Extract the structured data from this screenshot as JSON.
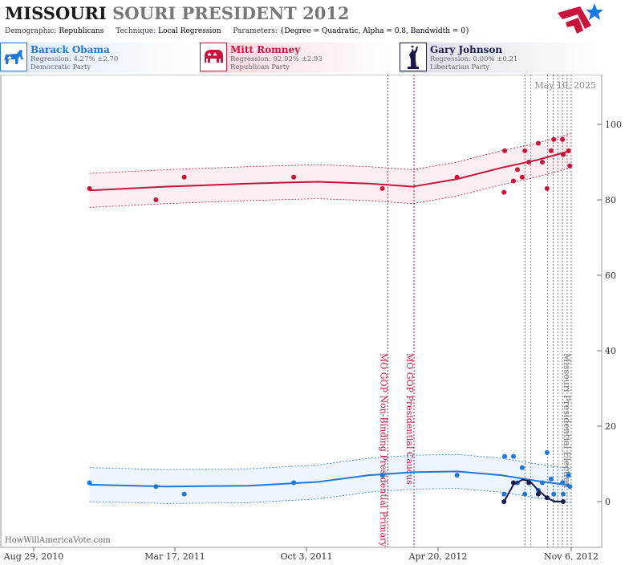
{
  "header": {
    "title_state": "MISSOURI",
    "title_rest": "SOURI PRESIDENT 2012",
    "demographic_label": "Demographic:",
    "demographic_value": "Republicans",
    "technique_label": "Technique:",
    "technique_value": "Local Regression",
    "parameters_label": "Parameters:",
    "parameters_value": "{Degree = Quadratic, Alpha = 0.8, Bandwidth = 0}"
  },
  "candidates": [
    {
      "name": "Barack Obama",
      "regression": "Regression: 4.27% ±2.70",
      "party": "Democratic Party",
      "color": "#1e78dc",
      "icon": "donkey-icon"
    },
    {
      "name": "Mitt Romney",
      "regression": "Regression: 92.92% ±2.93",
      "party": "Republican Party",
      "color": "#c8143c",
      "icon": "elephant-icon"
    },
    {
      "name": "Gary Johnson",
      "regression": "Regression: 0.00% ±0.21",
      "party": "Libertarian Party",
      "color": "#1a1a4a",
      "icon": "statue-of-liberty-icon"
    }
  ],
  "date_stamp": "May 10, 2025",
  "watermark": "HowWillAmericaVote.com",
  "chart_data": {
    "type": "scatter",
    "x_ticks": [
      "Aug 29, 2010",
      "Mar 17, 2011",
      "Oct 3, 2011",
      "Apr 20, 2012",
      "Nov 6, 2012"
    ],
    "x_range": [
      "2010-08-29",
      "2012-11-06"
    ],
    "y_ticks": [
      0,
      20,
      40,
      60,
      80,
      100
    ],
    "ylim": [
      -12,
      112
    ],
    "grid": false,
    "events": [
      {
        "label": "MO GOP Non-Binding Presidential Primary",
        "date": "2012-02-07",
        "color": "#c8143c"
      },
      {
        "label": "MO GOP Presidential Caucus",
        "date": "2012-03-17",
        "color": "#c8143c"
      },
      {
        "label": "Missouri Presidential Election",
        "date": "2012-11-06",
        "color": "#777777"
      }
    ],
    "series": [
      {
        "name": "Mitt Romney",
        "color": "#c8143c",
        "points": [
          [
            "2010-11-20",
            83
          ],
          [
            "2011-02-27",
            80
          ],
          [
            "2011-04-10",
            86
          ],
          [
            "2011-09-20",
            86
          ],
          [
            "2012-01-30",
            83
          ],
          [
            "2012-05-20",
            86
          ],
          [
            "2012-07-30",
            93
          ],
          [
            "2012-07-29",
            82
          ],
          [
            "2012-08-12",
            85
          ],
          [
            "2012-08-18",
            88
          ],
          [
            "2012-08-25",
            86
          ],
          [
            "2012-08-29",
            93
          ],
          [
            "2012-09-04",
            90
          ],
          [
            "2012-09-18",
            95
          ],
          [
            "2012-09-24",
            90
          ],
          [
            "2012-10-01",
            83
          ],
          [
            "2012-10-07",
            93
          ],
          [
            "2012-10-11",
            96
          ],
          [
            "2012-10-24",
            96
          ],
          [
            "2012-10-25",
            92
          ],
          [
            "2012-11-02",
            93
          ],
          [
            "2012-11-04",
            89
          ]
        ],
        "trend": [
          [
            "2010-11-20",
            82.5
          ],
          [
            "2011-03-15",
            83.5
          ],
          [
            "2011-07-15",
            84.3
          ],
          [
            "2011-10-25",
            84.8
          ],
          [
            "2012-01-10",
            84.3
          ],
          [
            "2012-03-15",
            83.5
          ],
          [
            "2012-05-20",
            85.5
          ],
          [
            "2012-07-25",
            88.5
          ],
          [
            "2012-09-15",
            90.5
          ],
          [
            "2012-11-05",
            93
          ]
        ],
        "band": 4.5
      },
      {
        "name": "Barack Obama",
        "color": "#1e78dc",
        "points": [
          [
            "2010-11-20",
            5
          ],
          [
            "2011-02-27",
            4
          ],
          [
            "2011-04-10",
            2
          ],
          [
            "2011-09-20",
            5
          ],
          [
            "2012-01-30",
            7
          ],
          [
            "2012-05-20",
            7
          ],
          [
            "2012-07-30",
            12
          ],
          [
            "2012-07-29",
            2
          ],
          [
            "2012-08-12",
            12
          ],
          [
            "2012-08-18",
            5
          ],
          [
            "2012-08-25",
            9
          ],
          [
            "2012-08-29",
            2
          ],
          [
            "2012-09-04",
            5
          ],
          [
            "2012-09-18",
            3
          ],
          [
            "2012-09-24",
            5
          ],
          [
            "2012-10-01",
            13
          ],
          [
            "2012-10-07",
            6
          ],
          [
            "2012-10-11",
            2
          ],
          [
            "2012-10-24",
            5
          ],
          [
            "2012-10-25",
            2
          ],
          [
            "2012-11-02",
            7
          ],
          [
            "2012-11-04",
            4
          ]
        ],
        "trend": [
          [
            "2010-11-20",
            4.5
          ],
          [
            "2011-03-15",
            4
          ],
          [
            "2011-07-15",
            4.2
          ],
          [
            "2011-10-25",
            5.2
          ],
          [
            "2012-01-10",
            7
          ],
          [
            "2012-03-15",
            7.8
          ],
          [
            "2012-05-20",
            8
          ],
          [
            "2012-07-25",
            7
          ],
          [
            "2012-09-15",
            5.5
          ],
          [
            "2012-11-05",
            4.3
          ]
        ],
        "band": 4.5
      },
      {
        "name": "Gary Johnson",
        "color": "#1a1a4a",
        "points": [
          [
            "2012-07-29",
            0
          ],
          [
            "2012-08-12",
            5
          ],
          [
            "2012-09-04",
            5
          ],
          [
            "2012-09-18",
            2
          ],
          [
            "2012-10-01",
            1
          ],
          [
            "2012-10-25",
            0
          ]
        ],
        "trend": [
          [
            "2012-07-29",
            0
          ],
          [
            "2012-08-12",
            4.5
          ],
          [
            "2012-08-25",
            5.8
          ],
          [
            "2012-09-05",
            5.5
          ],
          [
            "2012-09-18",
            3
          ],
          [
            "2012-10-01",
            1
          ],
          [
            "2012-10-12",
            0
          ],
          [
            "2012-10-25",
            0
          ]
        ],
        "band": 0
      }
    ]
  }
}
